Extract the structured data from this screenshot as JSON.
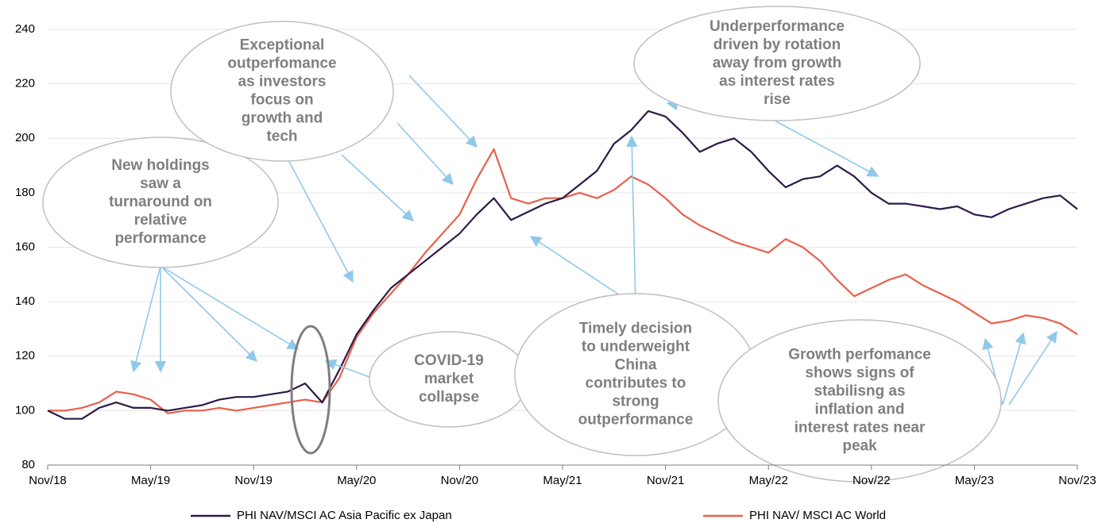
{
  "chart_data": {
    "type": "line",
    "categories": [
      "Nov/18",
      null,
      null,
      null,
      null,
      null,
      "May/19",
      null,
      null,
      null,
      null,
      null,
      "Nov/19",
      null,
      null,
      null,
      null,
      null,
      "May/20",
      null,
      null,
      null,
      null,
      null,
      "Nov/20",
      null,
      null,
      null,
      null,
      null,
      "May/21",
      null,
      null,
      null,
      null,
      null,
      "Nov/21",
      null,
      null,
      null,
      null,
      null,
      "May/22",
      null,
      null,
      null,
      null,
      null,
      "Nov/22",
      null,
      null,
      null,
      null,
      null,
      "May/23",
      null,
      null,
      null,
      null,
      null,
      "Nov/23"
    ],
    "series": [
      {
        "name": "PHI NAV/MSCI AC Asia Pacific ex Japan",
        "color": "#2e1a47",
        "values": [
          100,
          97,
          97,
          101,
          103,
          101,
          101,
          100,
          101,
          102,
          104,
          105,
          105,
          106,
          107,
          110,
          103,
          115,
          128,
          137,
          145,
          150,
          155,
          160,
          165,
          172,
          178,
          170,
          173,
          176,
          178,
          183,
          188,
          198,
          203,
          210,
          208,
          202,
          195,
          198,
          200,
          195,
          188,
          182,
          185,
          186,
          190,
          186,
          180,
          176,
          176,
          175,
          174,
          175,
          172,
          171,
          174,
          176,
          178,
          179,
          174
        ]
      },
      {
        "name": "PHI NAV/ MSCI AC World",
        "color": "#e8604c",
        "values": [
          100,
          100,
          101,
          103,
          107,
          106,
          104,
          99,
          100,
          100,
          101,
          100,
          101,
          102,
          103,
          104,
          103,
          112,
          127,
          136,
          143,
          150,
          158,
          165,
          172,
          185,
          196,
          178,
          176,
          178,
          178,
          180,
          178,
          181,
          186,
          183,
          178,
          172,
          168,
          165,
          162,
          160,
          158,
          163,
          160,
          155,
          148,
          142,
          145,
          148,
          150,
          146,
          143,
          140,
          136,
          132,
          133,
          135,
          134,
          132,
          128
        ]
      }
    ],
    "ylim": [
      80,
      240
    ],
    "yticks": [
      80,
      100,
      120,
      140,
      160,
      180,
      200,
      220,
      240
    ],
    "grid": true,
    "annotations": [
      {
        "lines": [
          "New holdings",
          "saw a",
          "turnaround on",
          "relative",
          "performance"
        ]
      },
      {
        "lines": [
          "Exceptional",
          "outperfomance",
          "as investors",
          "focus on",
          "growth and",
          "tech"
        ]
      },
      {
        "lines": [
          "Underperformance",
          "driven by rotation",
          "away from growth",
          "as interest rates",
          "rise"
        ]
      },
      {
        "lines": [
          "COVID-19",
          "market",
          "collapse"
        ]
      },
      {
        "lines": [
          "Timely decision",
          "to underweight",
          "China",
          "contributes to",
          "strong",
          "outperformance"
        ]
      },
      {
        "lines": [
          "Growth perfomance",
          "shows signs of",
          "stabilisng as",
          "inflation and",
          "interest rates near",
          "peak"
        ]
      }
    ]
  }
}
